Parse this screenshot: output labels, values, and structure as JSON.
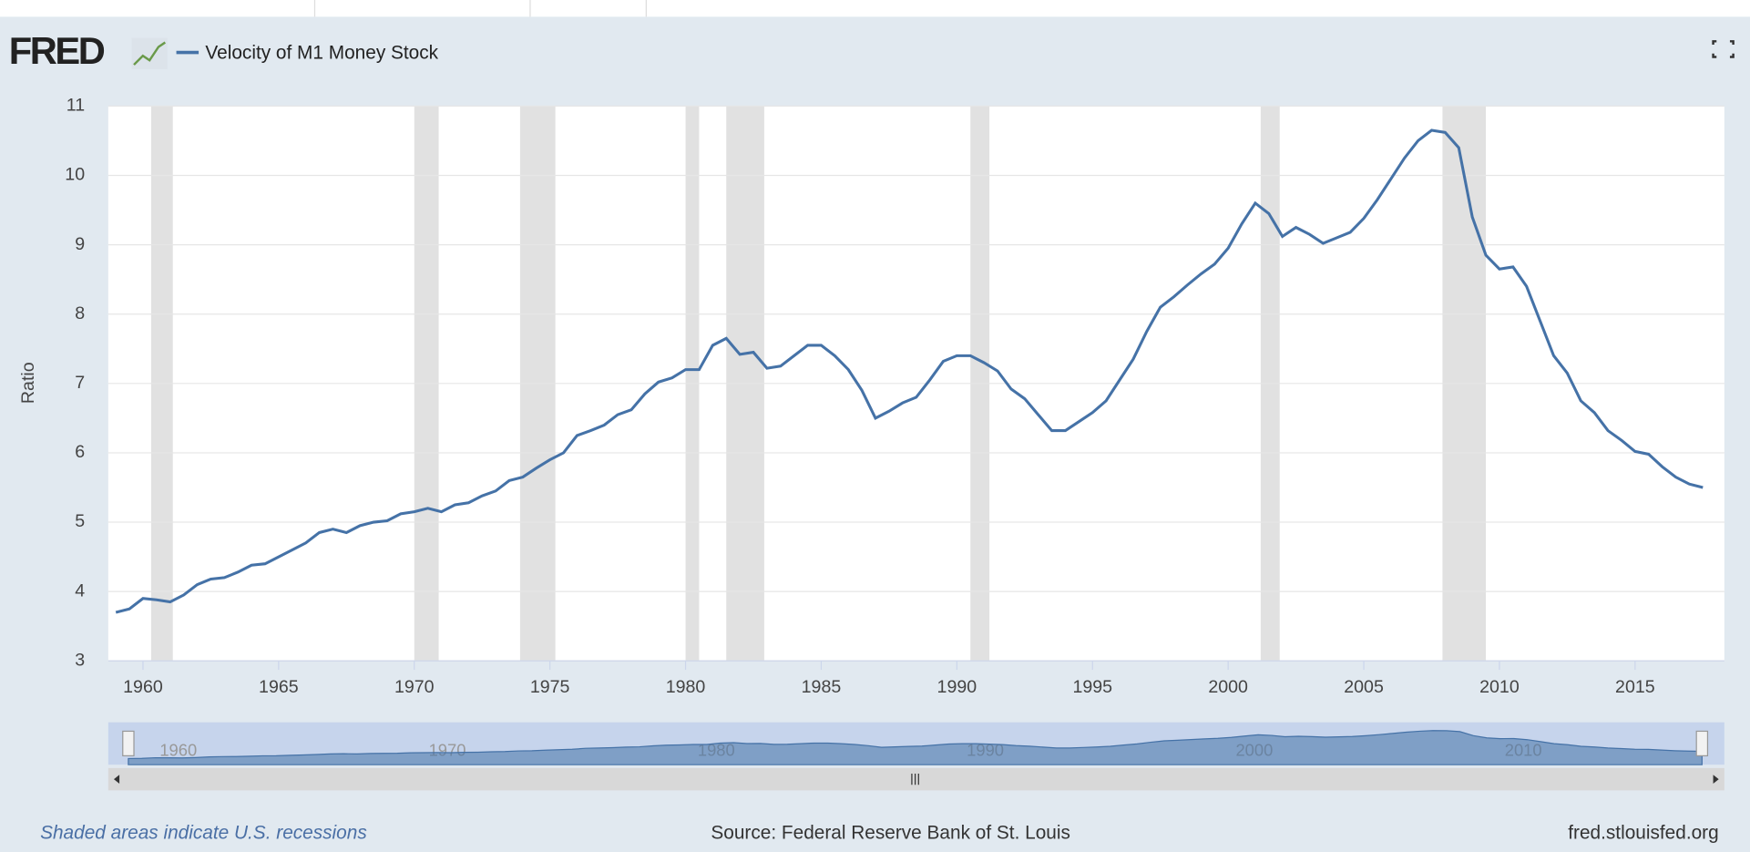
{
  "logo": "FRED",
  "footer": {
    "note": "Shaded areas indicate U.S. recessions",
    "source": "Source: Federal Reserve Bank of St. Louis",
    "site": "fred.stlouisfed.org"
  },
  "chart_data": {
    "type": "line",
    "ylabel": "Ratio",
    "x": [
      1959,
      1959.5,
      1960,
      1960.5,
      1961,
      1961.5,
      1962,
      1962.5,
      1963,
      1963.5,
      1964,
      1964.5,
      1965,
      1965.5,
      1966,
      1966.5,
      1967,
      1967.5,
      1968,
      1968.5,
      1969,
      1969.5,
      1970,
      1970.5,
      1971,
      1971.5,
      1972,
      1972.5,
      1973,
      1973.5,
      1974,
      1974.5,
      1975,
      1975.5,
      1976,
      1976.5,
      1977,
      1977.5,
      1978,
      1978.5,
      1979,
      1979.5,
      1980,
      1980.5,
      1981,
      1981.5,
      1982,
      1982.5,
      1983,
      1983.5,
      1984,
      1984.5,
      1985,
      1985.5,
      1986,
      1986.5,
      1987,
      1987.5,
      1988,
      1988.5,
      1989,
      1989.5,
      1990,
      1990.5,
      1991,
      1991.5,
      1992,
      1992.5,
      1993,
      1993.5,
      1994,
      1994.5,
      1995,
      1995.5,
      1996,
      1996.5,
      1997,
      1997.5,
      1998,
      1998.5,
      1999,
      1999.5,
      2000,
      2000.5,
      2001,
      2001.5,
      2002,
      2002.5,
      2003,
      2003.5,
      2004,
      2004.5,
      2005,
      2005.5,
      2006,
      2006.5,
      2007,
      2007.5,
      2008,
      2008.5,
      2009,
      2009.5,
      2010,
      2010.5,
      2011,
      2011.5,
      2012,
      2012.5,
      2013,
      2013.5,
      2014,
      2014.5,
      2015,
      2015.5,
      2016,
      2016.5,
      2017,
      2017.5
    ],
    "series": [
      {
        "name": "Velocity of M1 Money Stock",
        "color": "#4572a7",
        "values": [
          3.7,
          3.75,
          3.9,
          3.88,
          3.85,
          3.95,
          4.1,
          4.18,
          4.2,
          4.28,
          4.38,
          4.4,
          4.5,
          4.6,
          4.7,
          4.85,
          4.9,
          4.85,
          4.95,
          5.0,
          5.02,
          5.12,
          5.15,
          5.2,
          5.15,
          5.25,
          5.28,
          5.38,
          5.45,
          5.6,
          5.65,
          5.78,
          5.9,
          6.0,
          6.25,
          6.32,
          6.4,
          6.55,
          6.62,
          6.85,
          7.02,
          7.08,
          7.2,
          7.2,
          7.55,
          7.65,
          7.42,
          7.45,
          7.22,
          7.25,
          7.4,
          7.55,
          7.55,
          7.4,
          7.2,
          6.9,
          6.5,
          6.6,
          6.72,
          6.8,
          7.05,
          7.32,
          7.4,
          7.4,
          7.3,
          7.18,
          6.92,
          6.78,
          6.55,
          6.32,
          6.32,
          6.45,
          6.58,
          6.75,
          7.05,
          7.35,
          7.75,
          8.1,
          8.25,
          8.42,
          8.58,
          8.72,
          8.95,
          9.3,
          9.6,
          9.45,
          9.12,
          9.25,
          9.15,
          9.02,
          9.1,
          9.18,
          9.38,
          9.65,
          9.95,
          10.25,
          10.5,
          10.65,
          10.62,
          10.4,
          9.4,
          8.85,
          8.65,
          8.68,
          8.4,
          7.9,
          7.4,
          7.15,
          6.75,
          6.58,
          6.32,
          6.18,
          6.02,
          5.98,
          5.8,
          5.65,
          5.55,
          5.5
        ]
      }
    ],
    "recessions": [
      [
        1960.3,
        1961.1
      ],
      [
        1970.0,
        1970.9
      ],
      [
        1973.9,
        1975.2
      ],
      [
        1980.0,
        1980.5
      ],
      [
        1981.5,
        1982.9
      ],
      [
        1990.5,
        1991.2
      ],
      [
        2001.2,
        2001.9
      ],
      [
        2007.9,
        2009.5
      ]
    ],
    "recession_color": "#e1e1e1",
    "xlim": [
      1958.72,
      2018.29
    ],
    "xticks": [
      1960,
      1965,
      1970,
      1975,
      1980,
      1985,
      1990,
      1995,
      2000,
      2005,
      2010,
      2015
    ],
    "ylim": [
      3,
      11
    ],
    "yticks": [
      3,
      4,
      5,
      6,
      7,
      8,
      9,
      10,
      11
    ],
    "grid": true,
    "navigator_xlim": [
      1959,
      2017.5
    ],
    "navigator_ticks": [
      1960,
      1970,
      1980,
      1990,
      2000,
      2010
    ]
  }
}
